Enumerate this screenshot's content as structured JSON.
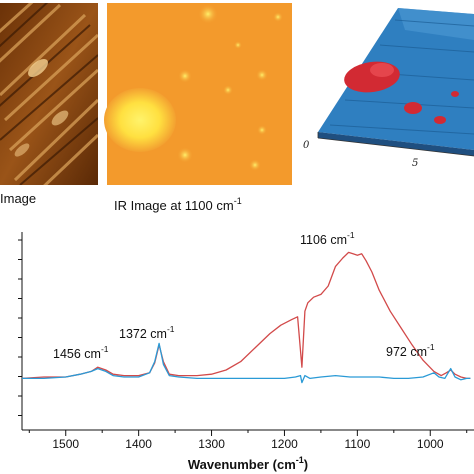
{
  "panels": {
    "afm_caption": "Image",
    "ir_caption_main": "IR Image at 1100 cm",
    "ir_caption_sup": "-1",
    "surface_axis_labels": [
      "0",
      "5"
    ]
  },
  "chart_data": {
    "type": "line",
    "xlabel": "Wavenumber (cm",
    "xlabel_sup": "-1",
    "xlabel_tail": ")",
    "xlim": [
      1560,
      940
    ],
    "ylim": [
      0,
      1
    ],
    "x_ticks": [
      1500,
      1400,
      1300,
      1200,
      1100,
      1000
    ],
    "grid": false,
    "colors": {
      "red": "#d24a4a",
      "blue": "#2a9ad6"
    },
    "annotations": [
      {
        "main": "1456 cm",
        "sup": "-1"
      },
      {
        "main": "1372 cm",
        "sup": "-1"
      },
      {
        "main": "1106 cm",
        "sup": "-1"
      },
      {
        "main": "972 cm",
        "sup": "-1"
      }
    ],
    "series": [
      {
        "color": "red",
        "x": [
          1560,
          1530,
          1500,
          1480,
          1465,
          1456,
          1445,
          1435,
          1420,
          1400,
          1385,
          1378,
          1372,
          1366,
          1358,
          1345,
          1320,
          1300,
          1280,
          1260,
          1240,
          1220,
          1205,
          1190,
          1182,
          1176,
          1172,
          1168,
          1160,
          1150,
          1140,
          1130,
          1120,
          1112,
          1106,
          1100,
          1094,
          1088,
          1080,
          1070,
          1055,
          1040,
          1025,
          1010,
          995,
          985,
          978,
          972,
          966,
          958,
          950,
          945
        ],
        "y": [
          0.04,
          0.05,
          0.05,
          0.07,
          0.09,
          0.12,
          0.1,
          0.07,
          0.06,
          0.06,
          0.08,
          0.15,
          0.28,
          0.16,
          0.07,
          0.06,
          0.06,
          0.07,
          0.1,
          0.16,
          0.26,
          0.36,
          0.42,
          0.46,
          0.48,
          0.12,
          0.52,
          0.58,
          0.62,
          0.64,
          0.7,
          0.84,
          0.9,
          0.94,
          0.93,
          0.92,
          0.93,
          0.88,
          0.8,
          0.67,
          0.52,
          0.4,
          0.28,
          0.17,
          0.09,
          0.06,
          0.08,
          0.1,
          0.07,
          0.05,
          0.04,
          0.04
        ]
      },
      {
        "color": "blue",
        "x": [
          1560,
          1530,
          1500,
          1480,
          1465,
          1456,
          1445,
          1435,
          1420,
          1400,
          1385,
          1378,
          1372,
          1366,
          1358,
          1345,
          1320,
          1300,
          1280,
          1260,
          1240,
          1220,
          1200,
          1185,
          1178,
          1176,
          1172,
          1165,
          1150,
          1130,
          1110,
          1090,
          1070,
          1050,
          1030,
          1010,
          995,
          988,
          980,
          972,
          966,
          958,
          950,
          945
        ],
        "y": [
          0.04,
          0.04,
          0.05,
          0.07,
          0.09,
          0.11,
          0.09,
          0.06,
          0.05,
          0.05,
          0.08,
          0.16,
          0.29,
          0.14,
          0.06,
          0.05,
          0.04,
          0.04,
          0.04,
          0.04,
          0.04,
          0.04,
          0.04,
          0.05,
          0.06,
          0.01,
          0.06,
          0.04,
          0.05,
          0.06,
          0.05,
          0.05,
          0.05,
          0.04,
          0.04,
          0.05,
          0.08,
          0.05,
          0.04,
          0.11,
          0.05,
          0.03,
          0.04,
          0.04
        ]
      }
    ]
  }
}
